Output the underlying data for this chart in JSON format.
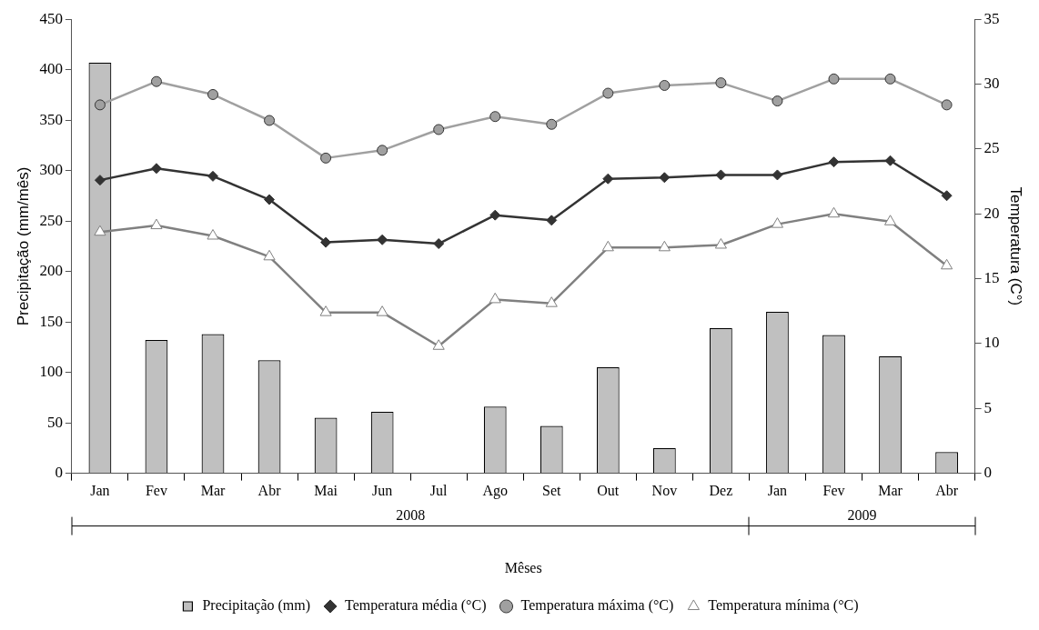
{
  "chart_data": {
    "type": "bar",
    "xlabel": "Mêses",
    "ylabel": "Precipitação (mm/mês)",
    "y2label": "Temperatura (C°)",
    "categories": [
      "Jan",
      "Fev",
      "Mar",
      "Abr",
      "Mai",
      "Jun",
      "Jul",
      "Ago",
      "Set",
      "Out",
      "Nov",
      "Dez",
      "Jan",
      "Fev",
      "Mar",
      "Abr"
    ],
    "annotations": [
      "2008",
      "2009"
    ],
    "series": [
      {
        "name": "Precipitação (mm)",
        "color": "#c0c0c0",
        "values": [
          407,
          132,
          138,
          112,
          55,
          61,
          0,
          66,
          47,
          105,
          25,
          144,
          160,
          137,
          116,
          21
        ]
      },
      {
        "name": "Temperatura média (°C)",
        "type": "line",
        "axis": "y2",
        "marker": "diamond",
        "color": "#333333",
        "values": [
          22.6,
          23.5,
          22.9,
          21.1,
          17.8,
          18.0,
          17.7,
          19.9,
          19.5,
          22.7,
          22.8,
          23.0,
          23.0,
          24.0,
          24.1,
          21.4
        ]
      },
      {
        "name": "Temperatura máxima (°C)",
        "type": "line",
        "axis": "y2",
        "marker": "circle",
        "color": "#a0a0a0",
        "values": [
          28.4,
          30.2,
          29.2,
          27.2,
          24.3,
          24.9,
          26.5,
          27.5,
          26.9,
          29.3,
          29.9,
          30.1,
          28.7,
          30.4,
          30.4,
          28.4
        ]
      },
      {
        "name": "Temperatura mínima (°C)",
        "type": "line",
        "axis": "y2",
        "marker": "triangle",
        "color": "#808080",
        "values": [
          18.6,
          19.1,
          18.3,
          16.7,
          12.4,
          12.4,
          9.8,
          13.4,
          13.1,
          17.4,
          17.4,
          17.6,
          19.2,
          20.0,
          19.4,
          16.0
        ]
      }
    ],
    "ylim": [
      0,
      450
    ],
    "yticks": [
      0,
      50,
      100,
      150,
      200,
      250,
      300,
      350,
      400,
      450
    ],
    "y2lim": [
      0,
      35
    ],
    "y2ticks": [
      0,
      5,
      10,
      15,
      20,
      25,
      30,
      35
    ],
    "grid": false,
    "legend": "bottom"
  }
}
